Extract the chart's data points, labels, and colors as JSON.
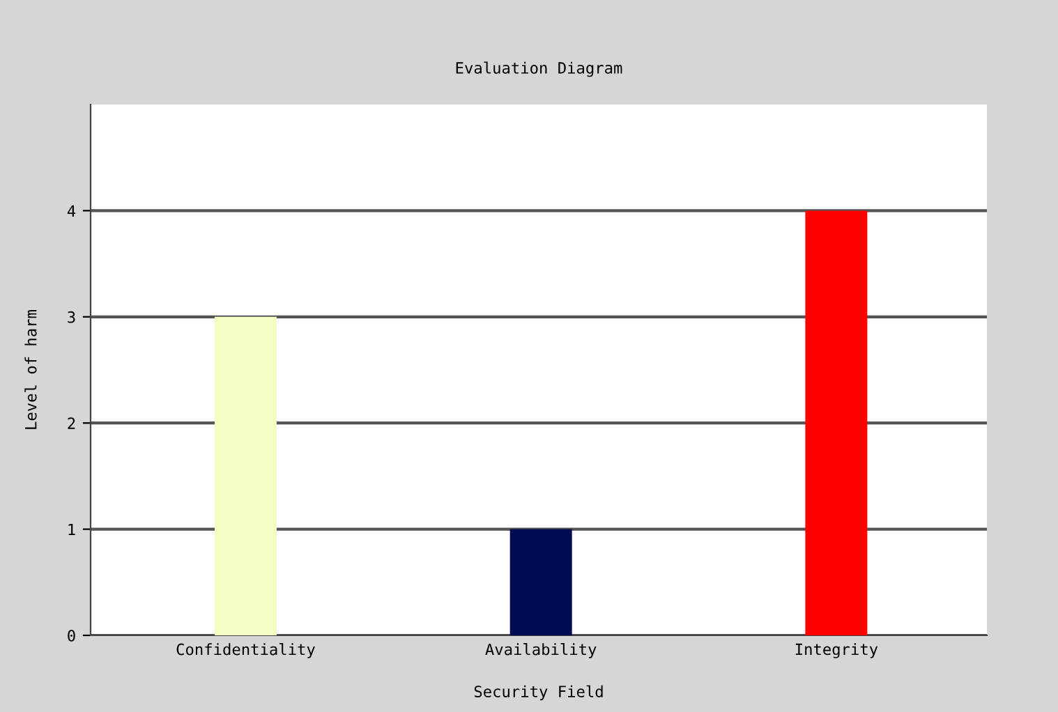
{
  "chart_data": {
    "type": "bar",
    "title": "Evaluation Diagram",
    "xlabel": "Security Field",
    "ylabel": "Level of harm",
    "categories": [
      "Confidentiality",
      "Availability",
      "Integrity"
    ],
    "values": [
      3,
      1,
      4
    ],
    "colors": [
      "#f5fcc4",
      "#000a50",
      "#ff0000"
    ],
    "ylim": [
      0,
      5
    ],
    "yticks": [
      0,
      1,
      2,
      3,
      4
    ],
    "grid": "y"
  }
}
